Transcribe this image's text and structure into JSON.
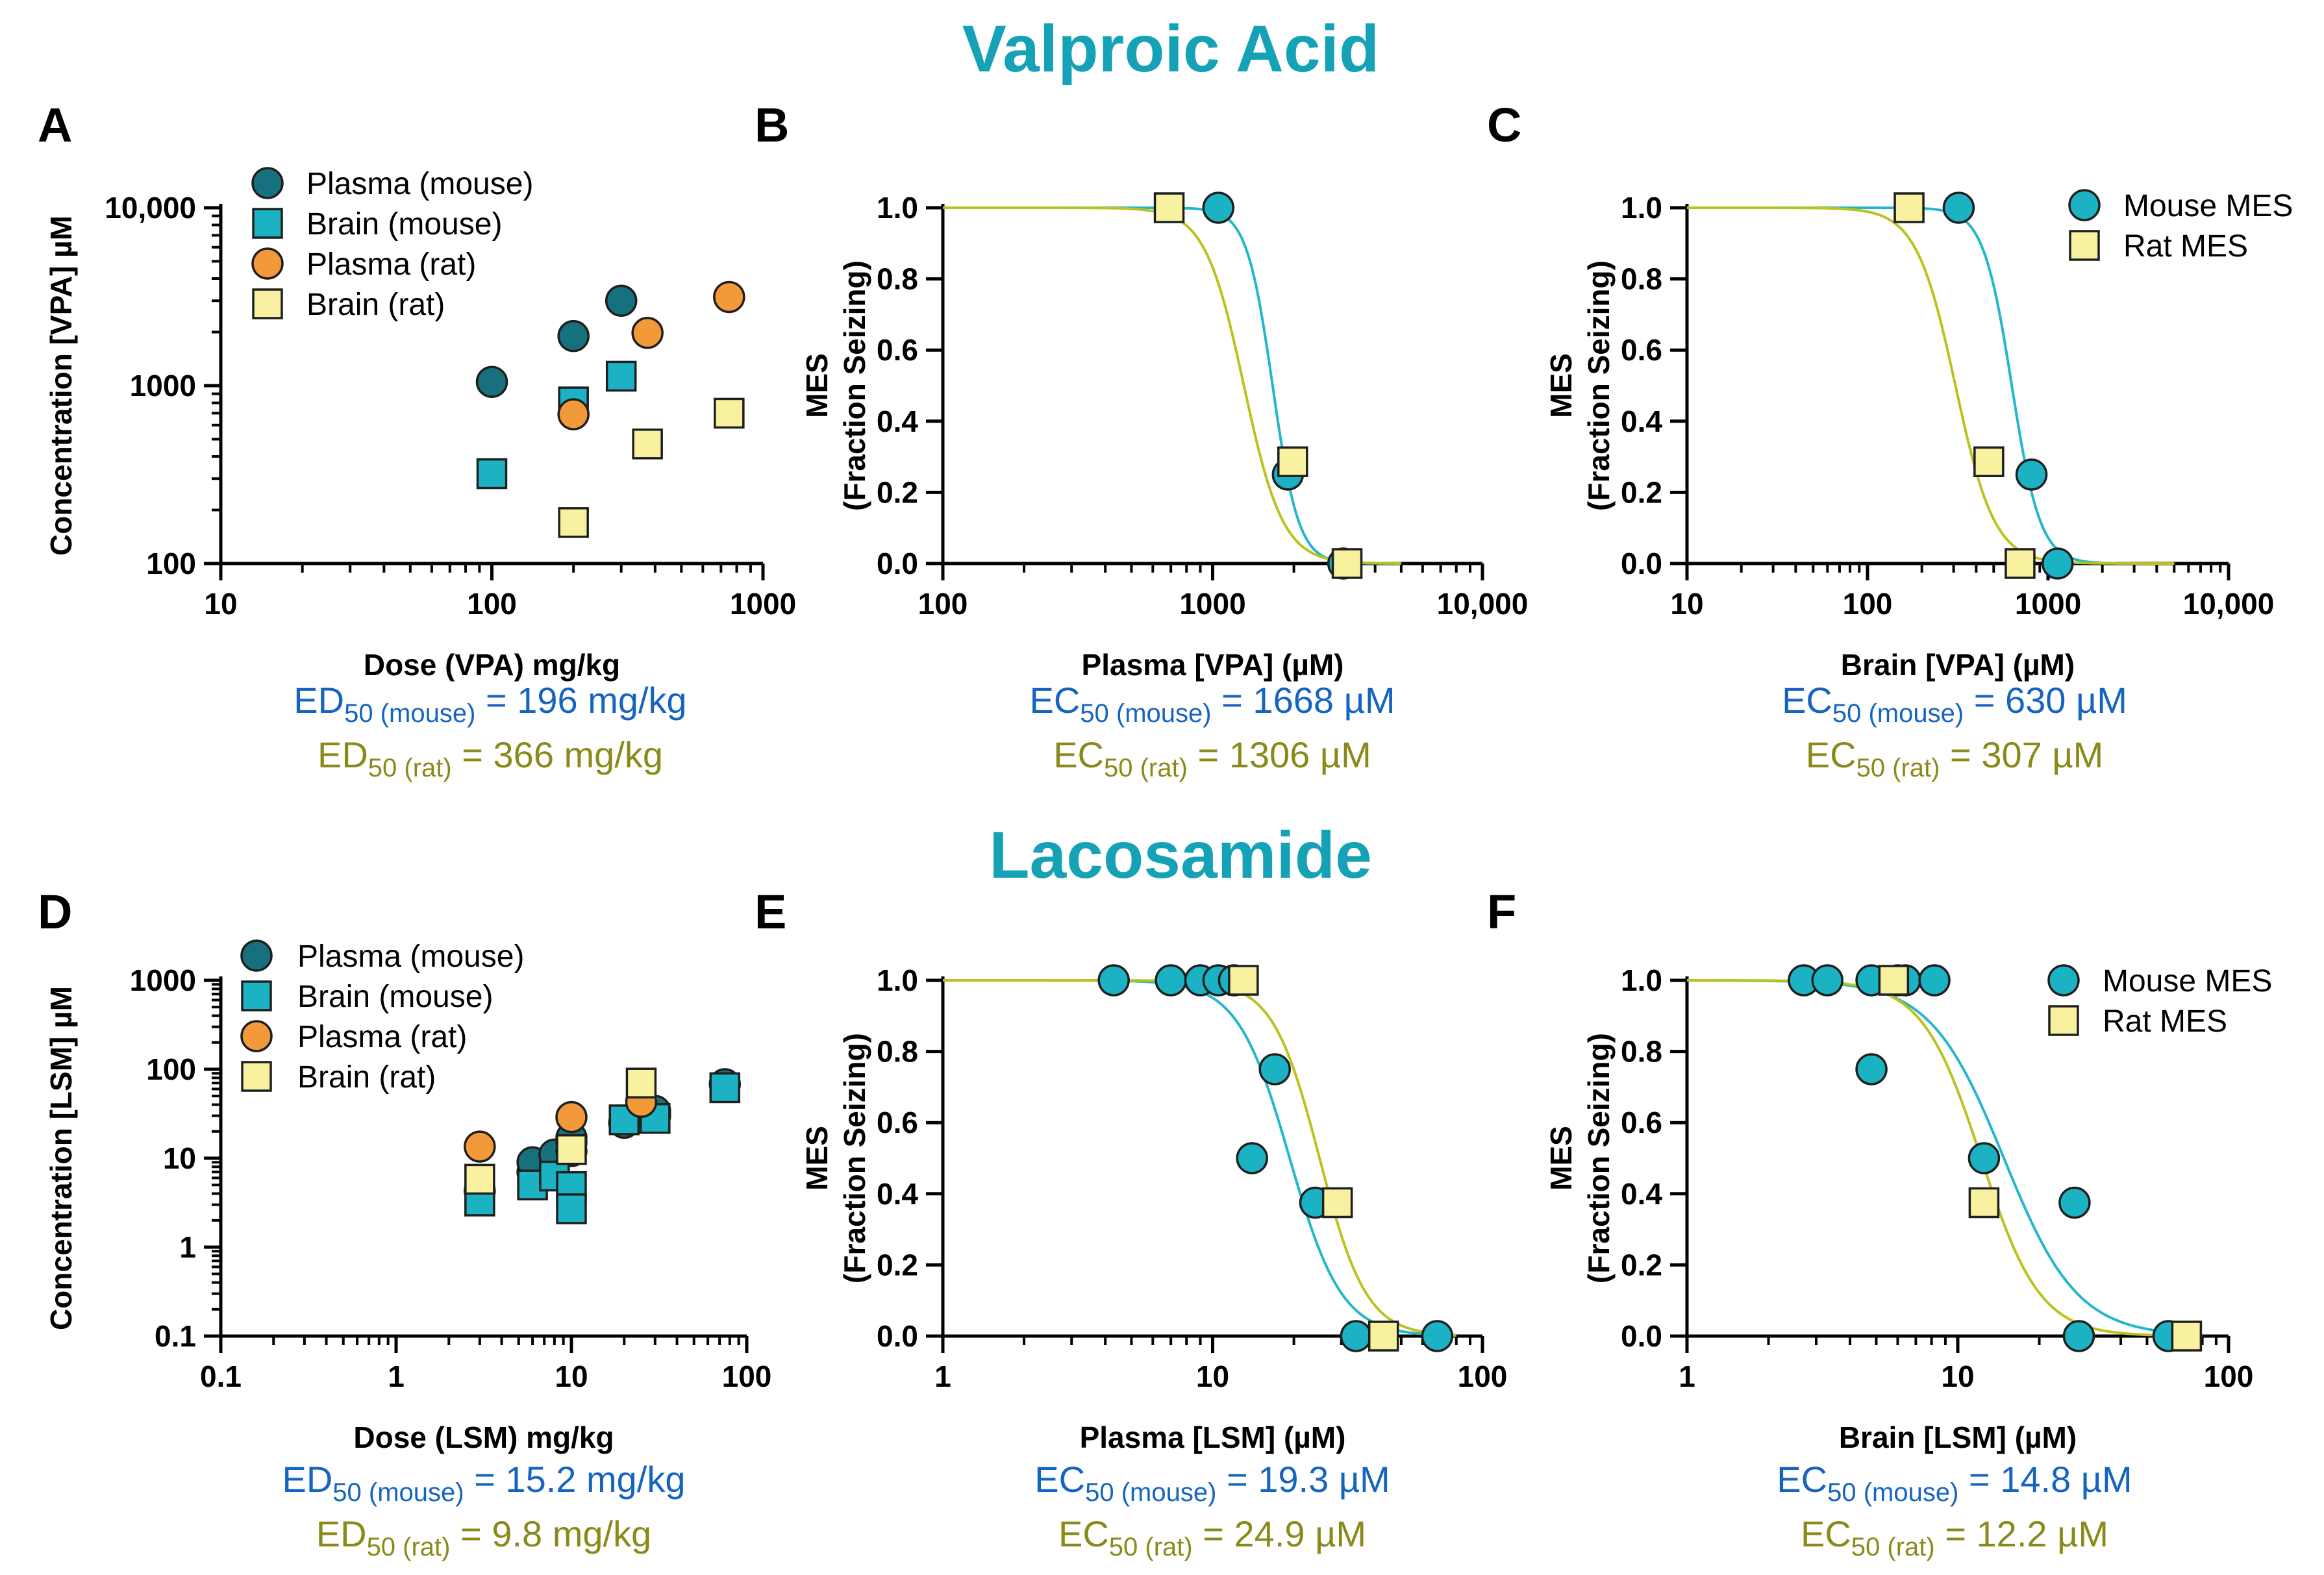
{
  "section_titles": [
    "Valproic Acid",
    "Lacosamide"
  ],
  "colors": {
    "title": "#16a2b6",
    "mouse_plasma": "#17707e",
    "mouse_brain": "#1bb3c4",
    "rat_plasma": "#f29a3a",
    "rat_brain": "#f7f1a0",
    "fit_mouse": "#23b7cc",
    "fit_rat": "#bcc21c",
    "stat_mouse": "#1565c0",
    "stat_rat": "#8a8a1a"
  },
  "chart_data": [
    {
      "panel": "A",
      "type": "scatter",
      "xlabel": "Dose (VPA) mg/kg",
      "ylabel": "Concentration [VPA] µM",
      "xscale": "log",
      "yscale": "log",
      "xlim": [
        10,
        1000
      ],
      "ylim": [
        100,
        10000
      ],
      "xticks": [
        "10",
        "100",
        "1000"
      ],
      "yticks": [
        "100",
        "1000",
        "10,000"
      ],
      "legend_position": "top-left",
      "series": [
        {
          "name": "Plasma (mouse)",
          "marker": "circle",
          "color_key": "mouse_plasma",
          "points": [
            [
              100,
              1050
            ],
            [
              200,
              1900
            ],
            [
              300,
              3000
            ]
          ]
        },
        {
          "name": "Brain (mouse)",
          "marker": "square",
          "color_key": "mouse_brain",
          "points": [
            [
              100,
              320
            ],
            [
              200,
              810
            ],
            [
              300,
              1130
            ]
          ]
        },
        {
          "name": "Plasma (rat)",
          "marker": "circle",
          "color_key": "rat_plasma",
          "points": [
            [
              200,
              690
            ],
            [
              375,
              1980
            ],
            [
              750,
              3150
            ]
          ]
        },
        {
          "name": "Brain (rat)",
          "marker": "square",
          "color_key": "rat_brain",
          "points": [
            [
              200,
              170
            ],
            [
              375,
              470
            ],
            [
              750,
              700
            ]
          ]
        }
      ],
      "stats": [
        {
          "prefix": "ED",
          "sub": "50 (mouse)",
          "text": " = 196 mg/kg",
          "color_key": "stat_mouse"
        },
        {
          "prefix": "ED",
          "sub": "50 (rat)",
          "text": " = 366 mg/kg",
          "color_key": "stat_rat"
        }
      ]
    },
    {
      "panel": "B",
      "type": "scatter",
      "xlabel": "Plasma [VPA] (µM)",
      "ylabel": "MES",
      "ylabel2": "(Fraction Seizing)",
      "xscale": "log",
      "xlim": [
        100,
        10000
      ],
      "ylim": [
        0,
        1
      ],
      "xticks": [
        "100",
        "1000",
        "10,000"
      ],
      "yticks": [
        "0.0",
        "0.2",
        "0.4",
        "0.6",
        "0.8",
        "1.0"
      ],
      "series": [
        {
          "name": "Mouse MES",
          "marker": "circle",
          "color_key": "mouse_brain",
          "points": [
            [
              1050,
              1.0
            ],
            [
              1900,
              0.25
            ],
            [
              3050,
              0.0
            ]
          ]
        },
        {
          "name": "Rat MES",
          "marker": "square",
          "color_key": "rat_brain",
          "points": [
            [
              690,
              1.0
            ],
            [
              1980,
              0.286
            ],
            [
              3150,
              0.0
            ]
          ]
        }
      ],
      "fits": [
        {
          "name": "Mouse MES",
          "color_key": "fit_mouse",
          "ec50": 1668,
          "hill": 9,
          "x_range": [
            100,
            5000
          ]
        },
        {
          "name": "Rat MES",
          "color_key": "fit_rat",
          "ec50": 1306,
          "hill": 6,
          "x_range": [
            100,
            5000
          ]
        }
      ],
      "stats": [
        {
          "prefix": "EC",
          "sub": "50 (mouse)",
          "text": " = 1668 µM",
          "color_key": "stat_mouse"
        },
        {
          "prefix": "EC",
          "sub": "50 (rat)",
          "text": " = 1306 µM",
          "color_key": "stat_rat"
        }
      ]
    },
    {
      "panel": "C",
      "type": "scatter",
      "xlabel": "Brain [VPA] (µM)",
      "ylabel": "MES",
      "ylabel2": "(Fraction Seizing)",
      "xscale": "log",
      "xlim": [
        10,
        10000
      ],
      "ylim": [
        0,
        1
      ],
      "xticks": [
        "10",
        "100",
        "1000",
        "10,000"
      ],
      "yticks": [
        "0.0",
        "0.2",
        "0.4",
        "0.6",
        "0.8",
        "1.0"
      ],
      "legend_position": "top-right",
      "series": [
        {
          "name": "Mouse MES",
          "marker": "circle",
          "color_key": "mouse_brain",
          "points": [
            [
              320,
              1.0
            ],
            [
              810,
              0.25
            ],
            [
              1130,
              0.0
            ]
          ]
        },
        {
          "name": "Rat MES",
          "marker": "square",
          "color_key": "rat_brain",
          "points": [
            [
              170,
              1.0
            ],
            [
              470,
              0.286
            ],
            [
              700,
              0.0
            ]
          ]
        }
      ],
      "fits": [
        {
          "name": "Mouse MES",
          "color_key": "fit_mouse",
          "ec50": 630,
          "hill": 5.5,
          "x_range": [
            10,
            5000
          ]
        },
        {
          "name": "Rat MES",
          "color_key": "fit_rat",
          "ec50": 307,
          "hill": 4,
          "x_range": [
            10,
            5000
          ]
        }
      ],
      "stats": [
        {
          "prefix": "EC",
          "sub": "50 (mouse)",
          "text": " = 630 µM",
          "color_key": "stat_mouse"
        },
        {
          "prefix": "EC",
          "sub": "50 (rat)",
          "text": " = 307 µM",
          "color_key": "stat_rat"
        }
      ]
    },
    {
      "panel": "D",
      "type": "scatter",
      "xlabel": "Dose (LSM) mg/kg",
      "ylabel": "Concentration [LSM] µM",
      "xscale": "log",
      "yscale": "log",
      "xlim": [
        0.1,
        100
      ],
      "ylim": [
        0.1,
        1000
      ],
      "xticks": [
        "0.1",
        "1",
        "10",
        "100"
      ],
      "yticks": [
        "0.1",
        "1",
        "10",
        "100",
        "1000"
      ],
      "legend_position": "top-left",
      "series": [
        {
          "name": "Plasma (mouse)",
          "marker": "circle",
          "color_key": "mouse_plasma",
          "points": [
            [
              3,
              4.3
            ],
            [
              6,
              7
            ],
            [
              6,
              9
            ],
            [
              8,
              11
            ],
            [
              10,
              12
            ],
            [
              10,
              15
            ],
            [
              10,
              17
            ],
            [
              20,
              25
            ],
            [
              30,
              30
            ],
            [
              30,
              34
            ],
            [
              75,
              68
            ]
          ]
        },
        {
          "name": "Brain (mouse)",
          "marker": "square",
          "color_key": "mouse_brain",
          "points": [
            [
              3,
              3.3
            ],
            [
              6,
              5
            ],
            [
              8,
              6.3
            ],
            [
              10,
              4.8
            ],
            [
              10,
              2.7
            ],
            [
              20,
              27
            ],
            [
              30,
              28
            ],
            [
              75,
              62
            ]
          ]
        },
        {
          "name": "Plasma (rat)",
          "marker": "circle",
          "color_key": "rat_plasma",
          "points": [
            [
              3,
              13.5
            ],
            [
              10,
              29
            ],
            [
              25,
              43
            ]
          ]
        },
        {
          "name": "Brain (rat)",
          "marker": "square",
          "color_key": "rat_brain",
          "points": [
            [
              3,
              5.8
            ],
            [
              10,
              12.5
            ],
            [
              25,
              70
            ]
          ]
        }
      ],
      "stats": [
        {
          "prefix": "ED",
          "sub": "50 (mouse)",
          "text": " = 15.2 mg/kg",
          "color_key": "stat_mouse"
        },
        {
          "prefix": "ED",
          "sub": "50 (rat)",
          "text": " = 9.8 mg/kg",
          "color_key": "stat_rat"
        }
      ]
    },
    {
      "panel": "E",
      "type": "scatter",
      "xlabel": "Plasma [LSM] (µM)",
      "ylabel": "MES",
      "ylabel2": "(Fraction Seizing)",
      "xscale": "log",
      "xlim": [
        1,
        100
      ],
      "ylim": [
        0,
        1
      ],
      "xticks": [
        "1",
        "10",
        "100"
      ],
      "yticks": [
        "0.0",
        "0.2",
        "0.4",
        "0.6",
        "0.8",
        "1.0"
      ],
      "series": [
        {
          "name": "Mouse MES",
          "marker": "circle",
          "color_key": "mouse_brain",
          "points": [
            [
              4.3,
              1.0
            ],
            [
              7,
              1.0
            ],
            [
              9,
              1.0
            ],
            [
              10.5,
              1.0
            ],
            [
              12,
              1.0
            ],
            [
              14,
              0.5
            ],
            [
              17,
              0.75
            ],
            [
              24,
              0.375
            ],
            [
              34,
              0.0
            ],
            [
              68,
              0.0
            ]
          ]
        },
        {
          "name": "Rat MES",
          "marker": "square",
          "color_key": "rat_brain",
          "points": [
            [
              13,
              1.0
            ],
            [
              29,
              0.375
            ],
            [
              43,
              0.0
            ]
          ]
        }
      ],
      "fits": [
        {
          "name": "Mouse MES",
          "color_key": "fit_mouse",
          "ec50": 19.3,
          "hill": 4.5,
          "x_range": [
            1,
            80
          ]
        },
        {
          "name": "Rat MES",
          "color_key": "fit_rat",
          "ec50": 24.9,
          "hill": 5,
          "x_range": [
            1,
            80
          ]
        }
      ],
      "stats": [
        {
          "prefix": "EC",
          "sub": "50 (mouse)",
          "text": " = 19.3 µM",
          "color_key": "stat_mouse"
        },
        {
          "prefix": "EC",
          "sub": "50 (rat)",
          "text": " = 24.9 µM",
          "color_key": "stat_rat"
        }
      ]
    },
    {
      "panel": "F",
      "type": "scatter",
      "xlabel": "Brain [LSM] (µM)",
      "ylabel": "MES",
      "ylabel2": "(Fraction Seizing)",
      "xscale": "log",
      "xlim": [
        1,
        100
      ],
      "ylim": [
        0,
        1
      ],
      "xticks": [
        "1",
        "10",
        "100"
      ],
      "yticks": [
        "0.0",
        "0.2",
        "0.4",
        "0.6",
        "0.8",
        "1.0"
      ],
      "legend_position": "top-right",
      "series": [
        {
          "name": "Mouse MES",
          "marker": "circle",
          "color_key": "mouse_brain",
          "points": [
            [
              2.7,
              1.0
            ],
            [
              3.3,
              1.0
            ],
            [
              4.8,
              1.0
            ],
            [
              6,
              1.0
            ],
            [
              6.4,
              1.0
            ],
            [
              8.2,
              1.0
            ],
            [
              4.8,
              0.75
            ],
            [
              12.5,
              0.5
            ],
            [
              27,
              0.375
            ],
            [
              28,
              0.0
            ],
            [
              60,
              0.0
            ]
          ]
        },
        {
          "name": "Rat MES",
          "marker": "square",
          "color_key": "rat_brain",
          "points": [
            [
              5.8,
              1.0
            ],
            [
              12.5,
              0.375
            ],
            [
              70,
              0.0
            ]
          ]
        }
      ],
      "fits": [
        {
          "name": "Mouse MES",
          "color_key": "fit_mouse",
          "ec50": 14.8,
          "hill": 3.2,
          "x_range": [
            1,
            80
          ]
        },
        {
          "name": "Rat MES",
          "color_key": "fit_rat",
          "ec50": 12.2,
          "hill": 4,
          "x_range": [
            1,
            80
          ]
        }
      ],
      "stats": [
        {
          "prefix": "EC",
          "sub": "50 (mouse)",
          "text": " = 14.8 µM",
          "color_key": "stat_mouse"
        },
        {
          "prefix": "EC",
          "sub": "50 (rat)",
          "text": " = 12.2 µM",
          "color_key": "stat_rat"
        }
      ]
    }
  ]
}
